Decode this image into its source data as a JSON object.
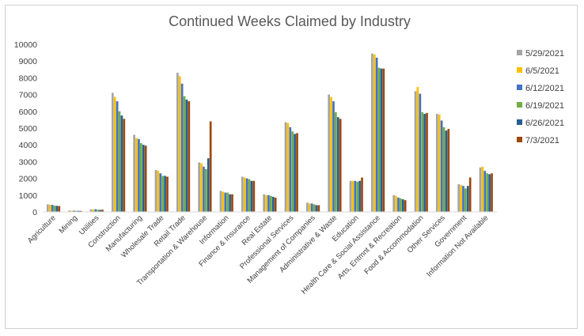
{
  "chart_data": {
    "type": "bar",
    "title": "Continued Weeks Claimed by Industry",
    "xlabel": "",
    "ylabel": "",
    "ylim": [
      0,
      10000
    ],
    "yticks": [
      "0",
      "1000",
      "2000",
      "3000",
      "4000",
      "5000",
      "6000",
      "7000",
      "8000",
      "9000",
      "10000"
    ],
    "grid": false,
    "legend_position": "right",
    "categories": [
      "Agriculture",
      "Mining",
      "Utilities",
      "Construction",
      "Manufacturing",
      "Wholesale Trade",
      "Retail Trade",
      "Transportation & Warehouse",
      "Information",
      "Finance & Insurance",
      "Real Estate",
      "Professional Services",
      "Management of Companies",
      "Administrative & Waste",
      "Education",
      "Health Care & Social Assistance",
      "Arts, Entmnt & Recreation",
      "Food & Accommodation",
      "Other Services",
      "Government",
      "Information Not Available"
    ],
    "series": [
      {
        "name": "5/29/2021",
        "color": "#a5a5a5",
        "values": [
          450,
          80,
          150,
          7100,
          4600,
          2500,
          8300,
          2950,
          1250,
          2100,
          1050,
          5350,
          550,
          7000,
          1850,
          9450,
          1000,
          7200,
          5850,
          1650,
          2650
        ]
      },
      {
        "name": "6/5/2021",
        "color": "#ffc000",
        "values": [
          430,
          70,
          140,
          6850,
          4400,
          2450,
          8100,
          2900,
          1200,
          2050,
          1000,
          5300,
          500,
          6850,
          1850,
          9400,
          950,
          7450,
          5800,
          1600,
          2700
        ]
      },
      {
        "name": "6/12/2021",
        "color": "#4472c4",
        "values": [
          420,
          70,
          160,
          6600,
          4350,
          2300,
          7650,
          2700,
          1150,
          2000,
          1000,
          5050,
          500,
          6600,
          1850,
          9200,
          850,
          7050,
          5450,
          1550,
          2450
        ]
      },
      {
        "name": "6/19/2021",
        "color": "#70ad47",
        "values": [
          370,
          60,
          130,
          6000,
          4100,
          2150,
          6900,
          2550,
          1150,
          1950,
          950,
          4800,
          450,
          5950,
          1800,
          8600,
          800,
          5950,
          5050,
          1400,
          2300
        ]
      },
      {
        "name": "6/26/2021",
        "color": "#255e91",
        "values": [
          360,
          60,
          120,
          5750,
          4000,
          2150,
          6700,
          3200,
          1050,
          1850,
          900,
          4650,
          400,
          5650,
          1850,
          8550,
          750,
          5850,
          4850,
          1550,
          2250
        ]
      },
      {
        "name": "7/3/2021",
        "color": "#9e480e",
        "values": [
          350,
          60,
          130,
          5550,
          3950,
          2100,
          6600,
          5400,
          1050,
          1850,
          850,
          4700,
          400,
          5550,
          2050,
          8550,
          700,
          5900,
          4950,
          2050,
          2300
        ]
      }
    ]
  }
}
